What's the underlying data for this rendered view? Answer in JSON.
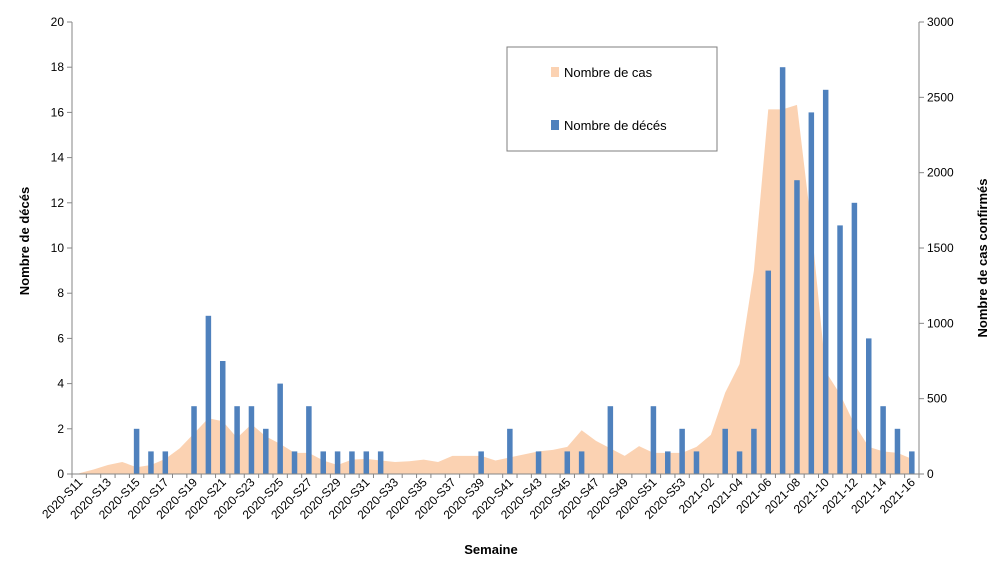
{
  "chart_data": {
    "type": "bar",
    "xlabel": "Semaine",
    "ylabel_left": "Nombre de décés",
    "ylabel_right": "Nombre de cas confirmés",
    "ylim_left": [
      0,
      20
    ],
    "ylim_right": [
      0,
      3000
    ],
    "yticks_left": [
      0,
      2,
      4,
      6,
      8,
      10,
      12,
      14,
      16,
      18,
      20
    ],
    "yticks_right": [
      0,
      500,
      1000,
      1500,
      2000,
      2500,
      3000
    ],
    "legend_position": "top-center",
    "grid": false,
    "categories": [
      "2020-S11",
      "2020-S12",
      "2020-S13",
      "2020-S14",
      "2020-S15",
      "2020-S16",
      "2020-S17",
      "2020-S18",
      "2020-S19",
      "2020-S20",
      "2020-S21",
      "2020-S22",
      "2020-S23",
      "2020-S24",
      "2020-S25",
      "2020-S26",
      "2020-S27",
      "2020-S28",
      "2020-S29",
      "2020-S30",
      "2020-S31",
      "2020-S32",
      "2020-S33",
      "2020-S34",
      "2020-S35",
      "2020-S36",
      "2020-S37",
      "2020-S38",
      "2020-S39",
      "2020-S40",
      "2020-S41",
      "2020-S42",
      "2020-S43",
      "2020-S44",
      "2020-S45",
      "2020-S46",
      "2020-S47",
      "2020-S48",
      "2020-S49",
      "2020-S50",
      "2020-S51",
      "2020-S52",
      "2020-S53",
      "2021-01",
      "2021-02",
      "2021-03",
      "2021-04",
      "2021-05",
      "2021-06",
      "2021-07",
      "2021-08",
      "2021-09",
      "2021-10",
      "2021-11",
      "2021-12",
      "2021-13",
      "2021-14",
      "2021-15",
      "2021-16"
    ],
    "x_tick_labels": [
      "2020-S11",
      "2020-S13",
      "2020-S15",
      "2020-S17",
      "2020-S19",
      "2020-S21",
      "2020-S23",
      "2020-S25",
      "2020-S27",
      "2020-S29",
      "2020-S31",
      "2020-S33",
      "2020-S35",
      "2020-S37",
      "2020-S39",
      "2020-S41",
      "2020-S43",
      "2020-S45",
      "2020-S47",
      "2020-S49",
      "2020-S51",
      "2020-S53",
      "2021-02",
      "2021-04",
      "2021-06",
      "2021-08",
      "2021-10",
      "2021-12",
      "2021-14",
      "2021-16"
    ],
    "series": [
      {
        "name": "Nombre de cas",
        "type": "area",
        "axis": "right",
        "color": "#FBD2B2",
        "values": [
          5,
          30,
          60,
          80,
          45,
          60,
          100,
          170,
          270,
          370,
          350,
          240,
          330,
          250,
          200,
          140,
          140,
          90,
          60,
          95,
          100,
          90,
          80,
          85,
          95,
          80,
          120,
          120,
          120,
          90,
          110,
          130,
          150,
          160,
          180,
          290,
          220,
          170,
          120,
          185,
          140,
          140,
          140,
          180,
          260,
          540,
          730,
          1350,
          2420,
          2420,
          2450,
          1650,
          680,
          530,
          330,
          180,
          150,
          140,
          100
        ]
      },
      {
        "name": "Nombre de décés",
        "type": "bar",
        "axis": "left",
        "color": "#4F81BD",
        "values": [
          0,
          0,
          0,
          0,
          2,
          1,
          1,
          0,
          3,
          7,
          5,
          3,
          3,
          2,
          4,
          1,
          3,
          1,
          1,
          1,
          1,
          1,
          0,
          0,
          0,
          0,
          0,
          0,
          1,
          0,
          2,
          0,
          1,
          0,
          1,
          1,
          0,
          3,
          0,
          0,
          3,
          1,
          2,
          1,
          0,
          2,
          1,
          2,
          9,
          18,
          13,
          16,
          17,
          11,
          12,
          6,
          3,
          2,
          1
        ]
      }
    ]
  },
  "legend": {
    "cases_label": "Nombre de cas",
    "deaths_label": "Nombre de décés"
  }
}
